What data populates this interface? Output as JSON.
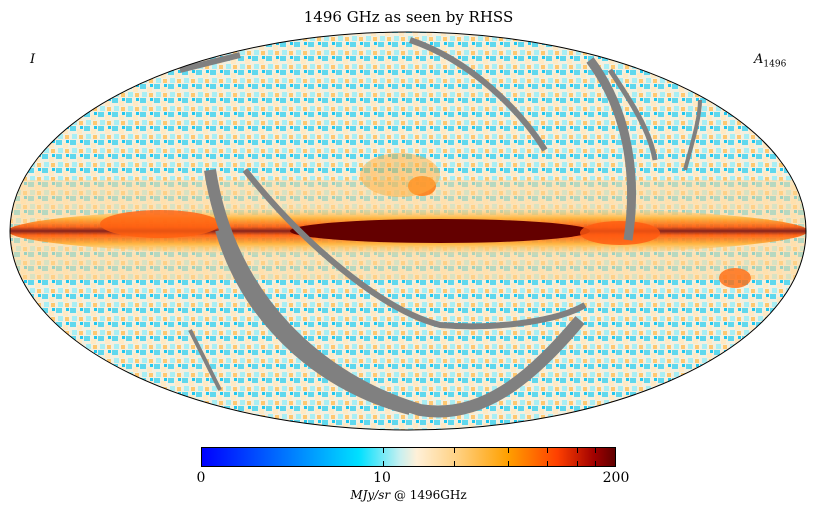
{
  "title": "1496 GHz as seen by RHSS",
  "stokes_label": "I",
  "map_label_main": "A",
  "map_label_sub": "1496",
  "colorbar": {
    "min_label": "0",
    "mid_label": "10",
    "max_label": "200",
    "unit_italic": "MJy/sr",
    "unit_rest": " @ 1496GHz",
    "colors": [
      "#0000ff",
      "#0080ff",
      "#00e0ff",
      "#c8f0f0",
      "#fff0d8",
      "#ffd080",
      "#ffa000",
      "#ff4000",
      "#a00000",
      "#600000"
    ]
  },
  "mask_color": "#808080"
}
